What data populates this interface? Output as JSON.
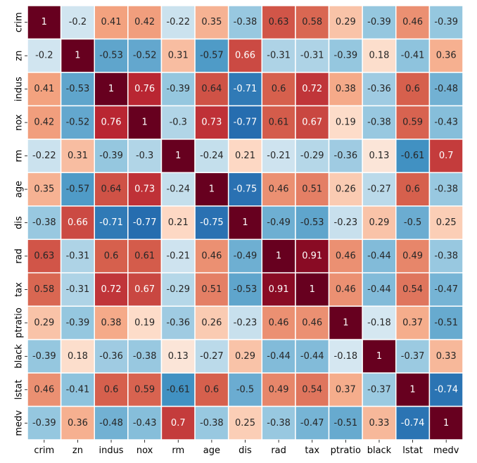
{
  "chart_data": {
    "type": "heatmap",
    "title": "",
    "xlabel": "",
    "ylabel": "",
    "variables": [
      "crim",
      "zn",
      "indus",
      "nox",
      "rm",
      "age",
      "dis",
      "rad",
      "tax",
      "ptratio",
      "black",
      "lstat",
      "medv"
    ],
    "value_range": [
      -1,
      1
    ],
    "colormap": "RdBu_r",
    "cell_border_color": "#ffffff",
    "show_values": true,
    "colorbar": false,
    "matrix": [
      [
        1,
        -0.2,
        0.41,
        0.42,
        -0.22,
        0.35,
        -0.38,
        0.63,
        0.58,
        0.29,
        -0.39,
        0.46,
        -0.39
      ],
      [
        -0.2,
        1,
        -0.53,
        -0.52,
        0.31,
        -0.57,
        0.66,
        -0.31,
        -0.31,
        -0.39,
        0.18,
        -0.41,
        0.36
      ],
      [
        0.41,
        -0.53,
        1,
        0.76,
        -0.39,
        0.64,
        -0.71,
        0.6,
        0.72,
        0.38,
        -0.36,
        0.6,
        -0.48
      ],
      [
        0.42,
        -0.52,
        0.76,
        1,
        -0.3,
        0.73,
        -0.77,
        0.61,
        0.67,
        0.19,
        -0.38,
        0.59,
        -0.43
      ],
      [
        -0.22,
        0.31,
        -0.39,
        -0.3,
        1,
        -0.24,
        0.21,
        -0.21,
        -0.29,
        -0.36,
        0.13,
        -0.61,
        0.7
      ],
      [
        0.35,
        -0.57,
        0.64,
        0.73,
        -0.24,
        1,
        -0.75,
        0.46,
        0.51,
        0.26,
        -0.27,
        0.6,
        -0.38
      ],
      [
        -0.38,
        0.66,
        -0.71,
        -0.77,
        0.21,
        -0.75,
        1,
        -0.49,
        -0.53,
        -0.23,
        0.29,
        -0.5,
        0.25
      ],
      [
        0.63,
        -0.31,
        0.6,
        0.61,
        -0.21,
        0.46,
        -0.49,
        1,
        0.91,
        0.46,
        -0.44,
        0.49,
        -0.38
      ],
      [
        0.58,
        -0.31,
        0.72,
        0.67,
        -0.29,
        0.51,
        -0.53,
        0.91,
        1,
        0.46,
        -0.44,
        0.54,
        -0.47
      ],
      [
        0.29,
        -0.39,
        0.38,
        0.19,
        -0.36,
        0.26,
        -0.23,
        0.46,
        0.46,
        1,
        -0.18,
        0.37,
        -0.51
      ],
      [
        -0.39,
        0.18,
        -0.36,
        -0.38,
        0.13,
        -0.27,
        0.29,
        -0.44,
        -0.44,
        -0.18,
        1,
        -0.37,
        0.33
      ],
      [
        0.46,
        -0.41,
        0.6,
        0.59,
        -0.61,
        0.6,
        -0.5,
        0.49,
        0.54,
        0.37,
        -0.37,
        1,
        -0.74
      ],
      [
        -0.39,
        0.36,
        -0.48,
        -0.43,
        0.7,
        -0.38,
        0.25,
        -0.38,
        -0.47,
        -0.51,
        0.33,
        -0.74,
        1
      ]
    ]
  }
}
